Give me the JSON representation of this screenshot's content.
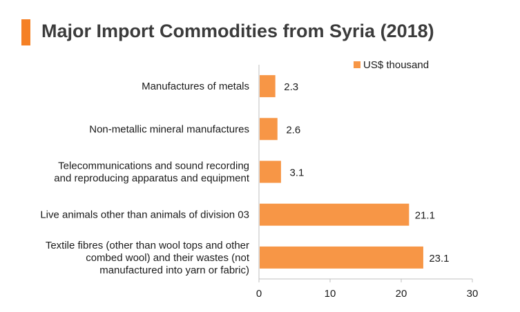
{
  "title": "Major Import Commodities from Syria (2018)",
  "colors": {
    "accent": "#f58025",
    "bar": "#f79646",
    "axis": "#bfbfbf",
    "text": "#1a1a1a"
  },
  "chart_data": {
    "type": "bar",
    "orientation": "horizontal",
    "categories": [
      "Manufactures of metals",
      "Non-metallic mineral manufactures",
      "Telecommunications and sound recording and reproducing apparatus and equipment",
      "Live animals other than animals of division 03",
      "Textile fibres (other than wool tops and other combed wool) and their wastes (not manufactured into yarn or fabric)"
    ],
    "category_lines": [
      [
        "Manufactures of metals"
      ],
      [
        "Non-metallic mineral manufactures"
      ],
      [
        "Telecommunications and sound recording",
        "and reproducing apparatus and equipment"
      ],
      [
        "Live animals other than animals of division 03"
      ],
      [
        "Textile fibres (other than wool tops and other",
        "combed wool) and their wastes (not",
        "manufactured into yarn or fabric)"
      ]
    ],
    "series": [
      {
        "name": "US$ thousand",
        "values": [
          2.3,
          2.6,
          3.1,
          21.1,
          23.1
        ]
      }
    ],
    "value_labels": [
      "2.3",
      "2.6",
      "3.1",
      "21.1",
      "23.1"
    ],
    "xlim": [
      0,
      30
    ],
    "xticks": [
      0,
      10,
      20,
      30
    ],
    "grid": false,
    "legend": "top-right"
  }
}
